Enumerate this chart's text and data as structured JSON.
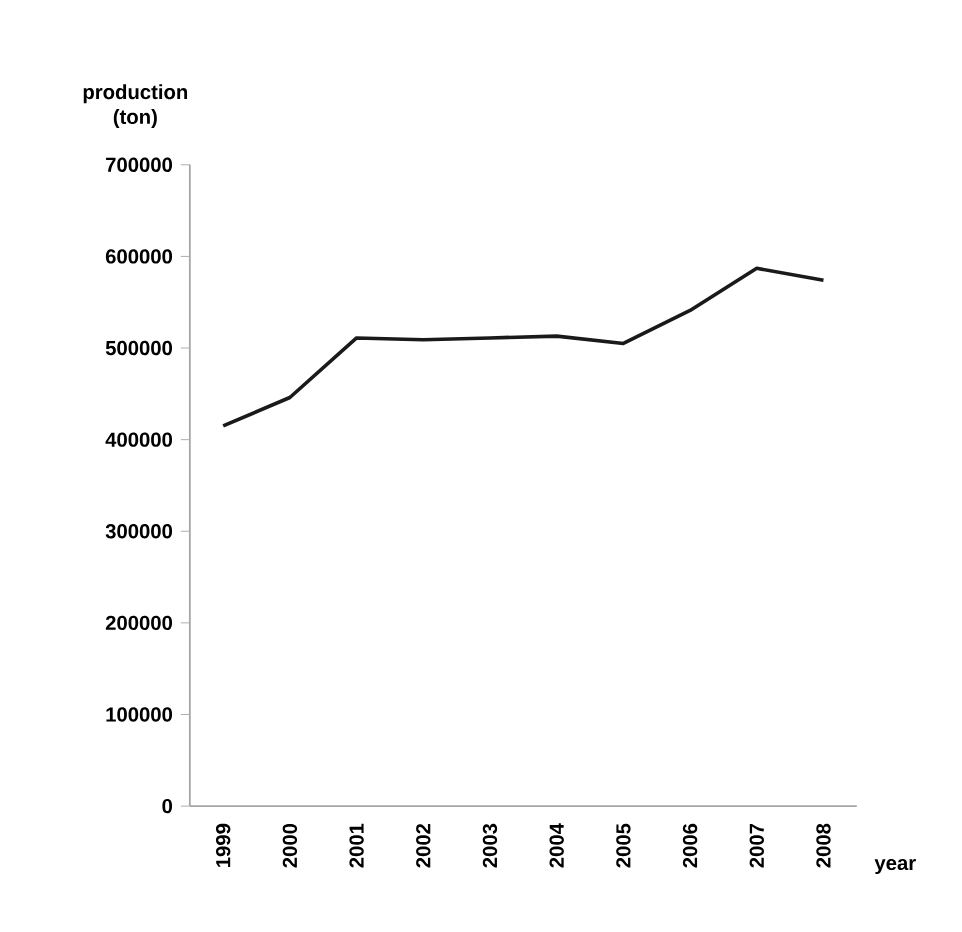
{
  "chart_data": {
    "type": "line",
    "xlabel": "year",
    "ylabel": "production (ton)",
    "categories": [
      "1999",
      "2000",
      "2001",
      "2002",
      "2003",
      "2004",
      "2005",
      "2006",
      "2007",
      "2008"
    ],
    "series": [
      {
        "color": "#1a1a1a",
        "values": [
          415000,
          446000,
          511000,
          509000,
          511000,
          513000,
          505000,
          541000,
          587000,
          574000
        ]
      }
    ],
    "ylim": [
      0,
      700000
    ],
    "yticks": [
      0,
      100000,
      200000,
      300000,
      400000,
      500000,
      600000,
      700000
    ],
    "grid": false,
    "marker": "none",
    "line_style": "solid"
  }
}
